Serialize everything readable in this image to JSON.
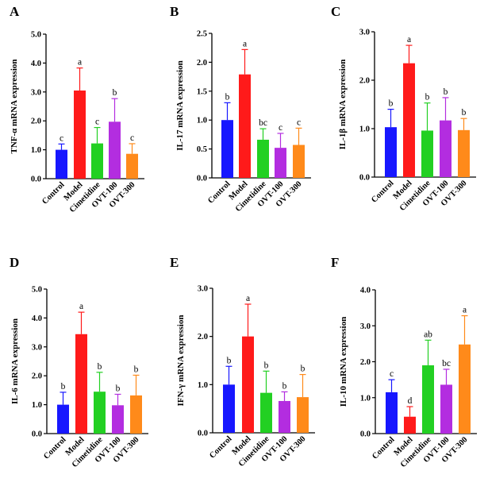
{
  "chart_data": [
    {
      "type": "bar",
      "panel": "A",
      "ylabel": "TNF-α mRNA expression",
      "ylim": [
        0,
        5.0
      ],
      "yticks": [
        "0.0",
        "1.0",
        "2.0",
        "3.0",
        "4.0",
        "5.0"
      ],
      "categories": [
        "Control",
        "Model",
        "Cimetidine",
        "OVT-100",
        "OVT-300"
      ],
      "values": [
        1.0,
        3.05,
        1.22,
        1.97,
        0.86
      ],
      "errors": [
        0.2,
        0.78,
        0.55,
        0.8,
        0.35
      ],
      "sig": [
        "c",
        "a",
        "c",
        "b",
        "c"
      ],
      "colors": [
        "#1717ff",
        "#ff1a1a",
        "#22d022",
        "#b32de0",
        "#ff8a1a"
      ]
    },
    {
      "type": "bar",
      "panel": "B",
      "ylabel": "IL-17 mRNA expression",
      "ylim": [
        0,
        2.5
      ],
      "yticks": [
        "0.0",
        "0.5",
        "1.0",
        "1.5",
        "2.0",
        "2.5"
      ],
      "categories": [
        "Control",
        "Model",
        "Cimetidine",
        "OVT-100",
        "OVT-300"
      ],
      "values": [
        1.0,
        1.79,
        0.66,
        0.52,
        0.57
      ],
      "errors": [
        0.3,
        0.43,
        0.19,
        0.25,
        0.29
      ],
      "sig": [
        "b",
        "a",
        "bc",
        "c",
        "c"
      ],
      "colors": [
        "#1717ff",
        "#ff1a1a",
        "#22d022",
        "#b32de0",
        "#ff8a1a"
      ]
    },
    {
      "type": "bar",
      "panel": "C",
      "ylabel": "IL-1β mRNA expression",
      "ylim": [
        0,
        3.0
      ],
      "yticks": [
        "0.0",
        "1.0",
        "2.0",
        "3.0"
      ],
      "categories": [
        "Control",
        "Model",
        "Cimetidine",
        "OVT-100",
        "OVT-300"
      ],
      "values": [
        1.03,
        2.35,
        0.96,
        1.17,
        0.97
      ],
      "errors": [
        0.37,
        0.37,
        0.57,
        0.47,
        0.24
      ],
      "sig": [
        "b",
        "a",
        "b",
        "b",
        "b"
      ],
      "colors": [
        "#1717ff",
        "#ff1a1a",
        "#22d022",
        "#b32de0",
        "#ff8a1a"
      ]
    },
    {
      "type": "bar",
      "panel": "D",
      "ylabel": "IL-6 mRNA expression",
      "ylim": [
        0,
        5.0
      ],
      "yticks": [
        "0.0",
        "1.0",
        "2.0",
        "3.0",
        "4.0",
        "5.0"
      ],
      "categories": [
        "Control",
        "Model",
        "Cimetidine",
        "OVT-100",
        "OVT-300"
      ],
      "values": [
        1.0,
        3.44,
        1.45,
        0.98,
        1.32
      ],
      "errors": [
        0.43,
        0.76,
        0.67,
        0.38,
        0.7
      ],
      "sig": [
        "b",
        "a",
        "b",
        "b",
        "b"
      ],
      "colors": [
        "#1717ff",
        "#ff1a1a",
        "#22d022",
        "#b32de0",
        "#ff8a1a"
      ]
    },
    {
      "type": "bar",
      "panel": "E",
      "ylabel": "IFN-γ mRNA expression",
      "ylim": [
        0,
        3.0
      ],
      "yticks": [
        "0.0",
        "1.0",
        "2.0",
        "3.0"
      ],
      "categories": [
        "Control",
        "Model",
        "Cimetidine",
        "OVT-100",
        "OVT-300"
      ],
      "values": [
        1.0,
        2.0,
        0.83,
        0.66,
        0.74
      ],
      "errors": [
        0.38,
        0.67,
        0.45,
        0.19,
        0.47
      ],
      "sig": [
        "b",
        "a",
        "b",
        "b",
        "b"
      ],
      "colors": [
        "#1717ff",
        "#ff1a1a",
        "#22d022",
        "#b32de0",
        "#ff8a1a"
      ]
    },
    {
      "type": "bar",
      "panel": "F",
      "ylabel": "IL-10 mRNA expression",
      "ylim": [
        0,
        4.0
      ],
      "yticks": [
        "0.0",
        "1.0",
        "2.0",
        "3.0",
        "4.0"
      ],
      "categories": [
        "Control",
        "Model",
        "Cimetidine",
        "OVT-100",
        "OVT-300"
      ],
      "values": [
        1.15,
        0.47,
        1.9,
        1.36,
        2.48
      ],
      "errors": [
        0.35,
        0.28,
        0.7,
        0.43,
        0.8
      ],
      "sig": [
        "c",
        "d",
        "ab",
        "bc",
        "a"
      ],
      "colors": [
        "#1717ff",
        "#ff1a1a",
        "#22d022",
        "#b32de0",
        "#ff8a1a"
      ]
    }
  ]
}
